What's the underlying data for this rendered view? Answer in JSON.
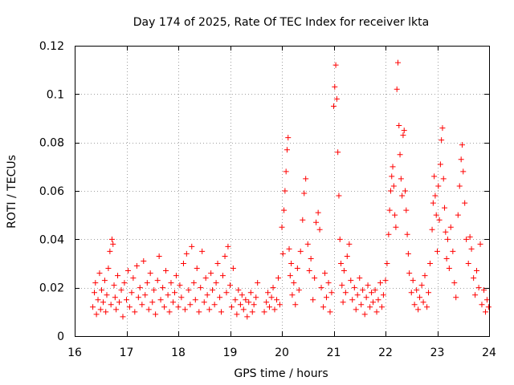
{
  "chart_data": {
    "type": "scatter",
    "title": "Day 174 of 2025, Rate Of TEC Index for receiver lkta",
    "xlabel": "GPS time / hours",
    "ylabel": "ROTI / TECUs",
    "xlim": [
      16,
      24
    ],
    "ylim": [
      0,
      0.12
    ],
    "xticks": [
      16,
      17,
      18,
      19,
      20,
      21,
      22,
      23,
      24
    ],
    "xtick_labels": [
      "16",
      "17",
      "18",
      "19",
      "20",
      "21",
      "22",
      "23",
      "24"
    ],
    "yticks": [
      0,
      0.02,
      0.04,
      0.06,
      0.08,
      0.1,
      0.12
    ],
    "ytick_labels": [
      "0",
      "0.02",
      "0.04",
      "0.06",
      "0.08",
      "0.1",
      "0.12"
    ],
    "grid": true,
    "marker": "+",
    "color": "#ff0000",
    "series": [
      {
        "name": "ROTI",
        "points": [
          [
            16.35,
            0.012
          ],
          [
            16.38,
            0.018
          ],
          [
            16.4,
            0.022
          ],
          [
            16.42,
            0.009
          ],
          [
            16.45,
            0.015
          ],
          [
            16.48,
            0.026
          ],
          [
            16.5,
            0.011
          ],
          [
            16.52,
            0.019
          ],
          [
            16.55,
            0.014
          ],
          [
            16.58,
            0.023
          ],
          [
            16.6,
            0.01
          ],
          [
            16.62,
            0.017
          ],
          [
            16.65,
            0.028
          ],
          [
            16.68,
            0.035
          ],
          [
            16.7,
            0.013
          ],
          [
            16.72,
            0.04
          ],
          [
            16.74,
            0.038
          ],
          [
            16.76,
            0.021
          ],
          [
            16.78,
            0.016
          ],
          [
            16.8,
            0.011
          ],
          [
            16.83,
            0.025
          ],
          [
            16.86,
            0.014
          ],
          [
            16.9,
            0.019
          ],
          [
            16.93,
            0.008
          ],
          [
            16.96,
            0.022
          ],
          [
            17.0,
            0.015
          ],
          [
            17.03,
            0.027
          ],
          [
            17.06,
            0.012
          ],
          [
            17.1,
            0.018
          ],
          [
            17.13,
            0.024
          ],
          [
            17.16,
            0.01
          ],
          [
            17.2,
            0.029
          ],
          [
            17.23,
            0.016
          ],
          [
            17.26,
            0.02
          ],
          [
            17.3,
            0.013
          ],
          [
            17.33,
            0.031
          ],
          [
            17.36,
            0.017
          ],
          [
            17.4,
            0.022
          ],
          [
            17.43,
            0.011
          ],
          [
            17.46,
            0.026
          ],
          [
            17.5,
            0.014
          ],
          [
            17.53,
            0.019
          ],
          [
            17.56,
            0.009
          ],
          [
            17.6,
            0.023
          ],
          [
            17.63,
            0.033
          ],
          [
            17.66,
            0.015
          ],
          [
            17.7,
            0.02
          ],
          [
            17.73,
            0.012
          ],
          [
            17.76,
            0.027
          ],
          [
            17.8,
            0.017
          ],
          [
            17.83,
            0.01
          ],
          [
            17.86,
            0.022
          ],
          [
            17.9,
            0.014
          ],
          [
            17.93,
            0.018
          ],
          [
            17.96,
            0.025
          ],
          [
            18.0,
            0.012
          ],
          [
            18.03,
            0.021
          ],
          [
            18.06,
            0.016
          ],
          [
            18.1,
            0.03
          ],
          [
            18.13,
            0.011
          ],
          [
            18.16,
            0.034
          ],
          [
            18.2,
            0.019
          ],
          [
            18.23,
            0.013
          ],
          [
            18.26,
            0.037
          ],
          [
            18.3,
            0.022
          ],
          [
            18.33,
            0.015
          ],
          [
            18.36,
            0.028
          ],
          [
            18.4,
            0.01
          ],
          [
            18.43,
            0.02
          ],
          [
            18.46,
            0.035
          ],
          [
            18.5,
            0.014
          ],
          [
            18.53,
            0.024
          ],
          [
            18.56,
            0.017
          ],
          [
            18.6,
            0.011
          ],
          [
            18.63,
            0.026
          ],
          [
            18.66,
            0.019
          ],
          [
            18.7,
            0.013
          ],
          [
            18.73,
            0.022
          ],
          [
            18.76,
            0.03
          ],
          [
            18.8,
            0.016
          ],
          [
            18.83,
            0.01
          ],
          [
            18.86,
            0.025
          ],
          [
            18.9,
            0.033
          ],
          [
            18.93,
            0.018
          ],
          [
            18.96,
            0.037
          ],
          [
            19.0,
            0.021
          ],
          [
            19.03,
            0.012
          ],
          [
            19.06,
            0.028
          ],
          [
            19.1,
            0.015
          ],
          [
            19.13,
            0.009
          ],
          [
            19.16,
            0.019
          ],
          [
            19.2,
            0.013
          ],
          [
            19.23,
            0.017
          ],
          [
            19.26,
            0.011
          ],
          [
            19.3,
            0.015
          ],
          [
            19.33,
            0.008
          ],
          [
            19.36,
            0.014
          ],
          [
            19.4,
            0.018
          ],
          [
            19.43,
            0.01
          ],
          [
            19.46,
            0.013
          ],
          [
            19.5,
            0.016
          ],
          [
            19.53,
            0.022
          ],
          [
            19.66,
            0.01
          ],
          [
            19.7,
            0.014
          ],
          [
            19.73,
            0.018
          ],
          [
            19.76,
            0.012
          ],
          [
            19.8,
            0.016
          ],
          [
            19.83,
            0.02
          ],
          [
            19.86,
            0.011
          ],
          [
            19.9,
            0.015
          ],
          [
            19.93,
            0.024
          ],
          [
            19.96,
            0.013
          ],
          [
            20.0,
            0.045
          ],
          [
            20.02,
            0.034
          ],
          [
            20.04,
            0.052
          ],
          [
            20.06,
            0.06
          ],
          [
            20.08,
            0.068
          ],
          [
            20.1,
            0.077
          ],
          [
            20.12,
            0.082
          ],
          [
            20.14,
            0.036
          ],
          [
            20.16,
            0.025
          ],
          [
            20.18,
            0.03
          ],
          [
            20.2,
            0.017
          ],
          [
            20.23,
            0.022
          ],
          [
            20.26,
            0.013
          ],
          [
            20.3,
            0.028
          ],
          [
            20.33,
            0.019
          ],
          [
            20.36,
            0.035
          ],
          [
            20.4,
            0.048
          ],
          [
            20.43,
            0.059
          ],
          [
            20.46,
            0.065
          ],
          [
            20.5,
            0.038
          ],
          [
            20.53,
            0.027
          ],
          [
            20.56,
            0.032
          ],
          [
            20.6,
            0.015
          ],
          [
            20.63,
            0.024
          ],
          [
            20.66,
            0.047
          ],
          [
            20.7,
            0.051
          ],
          [
            20.73,
            0.044
          ],
          [
            20.76,
            0.02
          ],
          [
            20.8,
            0.012
          ],
          [
            20.83,
            0.026
          ],
          [
            20.86,
            0.016
          ],
          [
            20.9,
            0.022
          ],
          [
            20.93,
            0.01
          ],
          [
            20.96,
            0.018
          ],
          [
            21.0,
            0.095
          ],
          [
            21.02,
            0.103
          ],
          [
            21.04,
            0.112
          ],
          [
            21.06,
            0.098
          ],
          [
            21.08,
            0.076
          ],
          [
            21.1,
            0.058
          ],
          [
            21.12,
            0.04
          ],
          [
            21.14,
            0.03
          ],
          [
            21.16,
            0.021
          ],
          [
            21.18,
            0.014
          ],
          [
            21.2,
            0.027
          ],
          [
            21.23,
            0.018
          ],
          [
            21.26,
            0.033
          ],
          [
            21.3,
            0.038
          ],
          [
            21.33,
            0.023
          ],
          [
            21.36,
            0.015
          ],
          [
            21.4,
            0.02
          ],
          [
            21.43,
            0.011
          ],
          [
            21.46,
            0.017
          ],
          [
            21.5,
            0.024
          ],
          [
            21.53,
            0.013
          ],
          [
            21.56,
            0.019
          ],
          [
            21.6,
            0.009
          ],
          [
            21.63,
            0.016
          ],
          [
            21.66,
            0.021
          ],
          [
            21.7,
            0.012
          ],
          [
            21.73,
            0.018
          ],
          [
            21.76,
            0.014
          ],
          [
            21.8,
            0.019
          ],
          [
            21.83,
            0.01
          ],
          [
            21.86,
            0.015
          ],
          [
            21.9,
            0.022
          ],
          [
            21.93,
            0.012
          ],
          [
            21.96,
            0.017
          ],
          [
            22.0,
            0.023
          ],
          [
            22.03,
            0.03
          ],
          [
            22.06,
            0.042
          ],
          [
            22.08,
            0.052
          ],
          [
            22.1,
            0.06
          ],
          [
            22.12,
            0.066
          ],
          [
            22.14,
            0.07
          ],
          [
            22.16,
            0.062
          ],
          [
            22.18,
            0.05
          ],
          [
            22.2,
            0.045
          ],
          [
            22.22,
            0.102
          ],
          [
            22.24,
            0.113
          ],
          [
            22.26,
            0.087
          ],
          [
            22.28,
            0.075
          ],
          [
            22.3,
            0.065
          ],
          [
            22.32,
            0.058
          ],
          [
            22.34,
            0.083
          ],
          [
            22.36,
            0.085
          ],
          [
            22.38,
            0.06
          ],
          [
            22.4,
            0.052
          ],
          [
            22.42,
            0.042
          ],
          [
            22.44,
            0.034
          ],
          [
            22.46,
            0.026
          ],
          [
            22.5,
            0.018
          ],
          [
            22.53,
            0.023
          ],
          [
            22.56,
            0.013
          ],
          [
            22.6,
            0.019
          ],
          [
            22.63,
            0.011
          ],
          [
            22.66,
            0.016
          ],
          [
            22.7,
            0.021
          ],
          [
            22.73,
            0.014
          ],
          [
            22.76,
            0.025
          ],
          [
            22.8,
            0.012
          ],
          [
            22.83,
            0.018
          ],
          [
            22.86,
            0.03
          ],
          [
            22.9,
            0.044
          ],
          [
            22.92,
            0.055
          ],
          [
            22.94,
            0.066
          ],
          [
            22.96,
            0.058
          ],
          [
            22.98,
            0.05
          ],
          [
            23.0,
            0.035
          ],
          [
            23.02,
            0.062
          ],
          [
            23.04,
            0.048
          ],
          [
            23.06,
            0.071
          ],
          [
            23.08,
            0.081
          ],
          [
            23.1,
            0.086
          ],
          [
            23.12,
            0.065
          ],
          [
            23.14,
            0.053
          ],
          [
            23.16,
            0.043
          ],
          [
            23.18,
            0.032
          ],
          [
            23.2,
            0.04
          ],
          [
            23.23,
            0.028
          ],
          [
            23.26,
            0.045
          ],
          [
            23.3,
            0.035
          ],
          [
            23.33,
            0.022
          ],
          [
            23.36,
            0.016
          ],
          [
            23.4,
            0.05
          ],
          [
            23.43,
            0.062
          ],
          [
            23.46,
            0.073
          ],
          [
            23.48,
            0.079
          ],
          [
            23.5,
            0.068
          ],
          [
            23.53,
            0.055
          ],
          [
            23.56,
            0.04
          ],
          [
            23.6,
            0.03
          ],
          [
            23.63,
            0.041
          ],
          [
            23.66,
            0.036
          ],
          [
            23.7,
            0.024
          ],
          [
            23.73,
            0.017
          ],
          [
            23.76,
            0.027
          ],
          [
            23.8,
            0.02
          ],
          [
            23.83,
            0.038
          ],
          [
            23.86,
            0.013
          ],
          [
            23.9,
            0.019
          ],
          [
            23.93,
            0.01
          ],
          [
            23.96,
            0.015
          ],
          [
            23.99,
            0.012
          ]
        ]
      }
    ]
  }
}
